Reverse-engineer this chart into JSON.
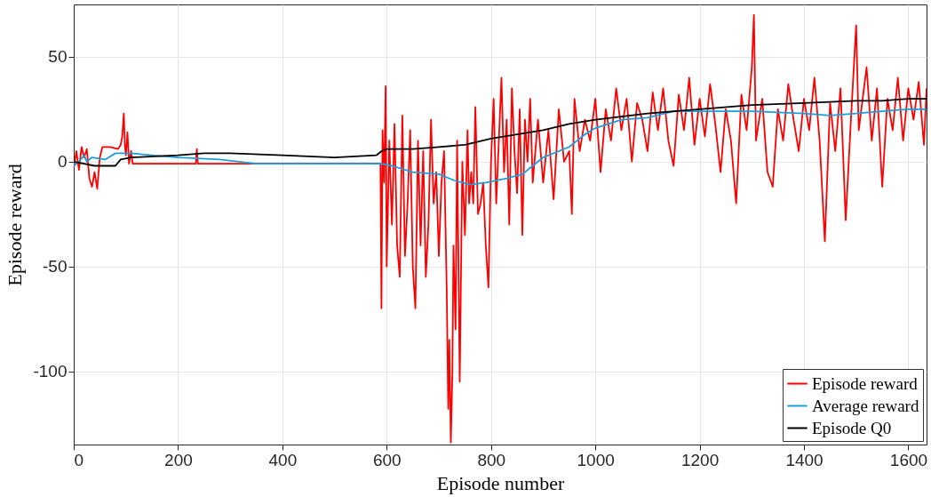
{
  "chart_data": {
    "type": "line",
    "xlabel": "Episode number",
    "ylabel": "Episode reward",
    "xlim": [
      0,
      1635
    ],
    "ylim": [
      -135,
      75
    ],
    "xticks": [
      0,
      200,
      400,
      600,
      800,
      1000,
      1200,
      1400,
      1600
    ],
    "yticks": [
      -100,
      -50,
      0,
      50
    ],
    "grid": true,
    "legend": "bottom right",
    "line_style": "solid",
    "marker": "none",
    "series": [
      {
        "name": "Episode reward",
        "color": "#ff0000",
        "x": [
          0,
          5,
          10,
          15,
          20,
          25,
          30,
          35,
          40,
          45,
          50,
          55,
          70,
          85,
          90,
          93,
          96,
          98,
          100,
          103,
          106,
          110,
          113,
          200,
          234,
          236,
          238,
          588,
          590,
          592,
          595,
          598,
          600,
          605,
          610,
          615,
          620,
          625,
          630,
          635,
          640,
          645,
          650,
          655,
          660,
          665,
          670,
          675,
          680,
          685,
          690,
          695,
          700,
          705,
          710,
          715,
          718,
          720,
          723,
          726,
          728,
          732,
          735,
          740,
          745,
          750,
          755,
          758,
          762,
          766,
          770,
          775,
          780,
          785,
          790,
          795,
          800,
          805,
          810,
          815,
          820,
          825,
          830,
          835,
          840,
          845,
          850,
          855,
          860,
          865,
          870,
          875,
          880,
          890,
          900,
          910,
          920,
          930,
          940,
          950,
          955,
          960,
          970,
          980,
          990,
          1000,
          1010,
          1020,
          1030,
          1040,
          1050,
          1060,
          1070,
          1080,
          1090,
          1100,
          1110,
          1120,
          1130,
          1140,
          1150,
          1160,
          1170,
          1180,
          1190,
          1200,
          1210,
          1220,
          1230,
          1240,
          1250,
          1260,
          1270,
          1280,
          1290,
          1300,
          1304,
          1308,
          1320,
          1330,
          1340,
          1350,
          1360,
          1370,
          1380,
          1390,
          1400,
          1410,
          1420,
          1430,
          1440,
          1450,
          1460,
          1470,
          1480,
          1490,
          1500,
          1505,
          1520,
          1530,
          1540,
          1550,
          1560,
          1570,
          1580,
          1590,
          1600,
          1610,
          1620,
          1630,
          1635
        ],
        "values": [
          -3,
          5,
          -4,
          7,
          2,
          6,
          -8,
          -12,
          -5,
          -13,
          2,
          7,
          7,
          6,
          8,
          12,
          23,
          8,
          3,
          14,
          -1,
          5,
          -1,
          -1,
          -1,
          6,
          -1,
          -1,
          -70,
          15,
          -10,
          36,
          -50,
          10,
          -30,
          18,
          -40,
          -55,
          22,
          -45,
          -20,
          15,
          -50,
          -70,
          10,
          -40,
          5,
          -55,
          -30,
          20,
          -20,
          -5,
          -45,
          -10,
          5,
          -60,
          -118,
          -85,
          -134,
          -100,
          -40,
          -80,
          10,
          -105,
          0,
          -35,
          15,
          -20,
          -5,
          -20,
          26,
          -25,
          -20,
          -10,
          -40,
          -60,
          0,
          30,
          -20,
          10,
          40,
          -5,
          20,
          -30,
          35,
          5,
          -15,
          25,
          -35,
          20,
          0,
          30,
          -10,
          20,
          -10,
          15,
          -18,
          25,
          0,
          5,
          -25,
          30,
          5,
          20,
          10,
          30,
          -5,
          25,
          10,
          35,
          15,
          30,
          0,
          28,
          20,
          5,
          33,
          15,
          35,
          10,
          -2,
          32,
          15,
          40,
          8,
          30,
          12,
          37,
          18,
          -5,
          25,
          10,
          -20,
          32,
          15,
          45,
          70,
          10,
          30,
          -5,
          -12,
          25,
          10,
          37,
          20,
          5,
          30,
          15,
          40,
          10,
          -38,
          28,
          5,
          35,
          -28,
          20,
          65,
          15,
          45,
          10,
          35,
          -12,
          30,
          15,
          40,
          10,
          35,
          20,
          38,
          8,
          35
        ]
      },
      {
        "name": "Average reward",
        "color": "#1a9fdb",
        "x": [
          0,
          10,
          20,
          25,
          35,
          60,
          80,
          110,
          150,
          200,
          280,
          350,
          590,
          610,
          650,
          700,
          730,
          760,
          790,
          830,
          860,
          900,
          950,
          980,
          1000,
          1050,
          1100,
          1150,
          1200,
          1300,
          1400,
          1450,
          1500,
          1550,
          1600,
          1635
        ],
        "values": [
          -2,
          0,
          3,
          0,
          2,
          1,
          4,
          4,
          3,
          2,
          1,
          -1,
          -1,
          -2,
          -5,
          -6,
          -9,
          -11,
          -10,
          -8,
          -6,
          2,
          7,
          13,
          16,
          20,
          21,
          24,
          24,
          24,
          23,
          22,
          23,
          24,
          25,
          25
        ]
      },
      {
        "name": "Episode Q0",
        "color": "#000000",
        "x": [
          0,
          40,
          80,
          90,
          110,
          200,
          250,
          300,
          400,
          500,
          580,
          590,
          600,
          650,
          700,
          750,
          800,
          850,
          900,
          950,
          1000,
          1100,
          1200,
          1300,
          1400,
          1500,
          1550,
          1600,
          1635
        ],
        "values": [
          0,
          -2,
          -2,
          1,
          2,
          3,
          4,
          4,
          3,
          2,
          3,
          5,
          6,
          6,
          7,
          8,
          11,
          13,
          15,
          18,
          20,
          23,
          25,
          27,
          28,
          29,
          29,
          30,
          30
        ]
      }
    ]
  }
}
